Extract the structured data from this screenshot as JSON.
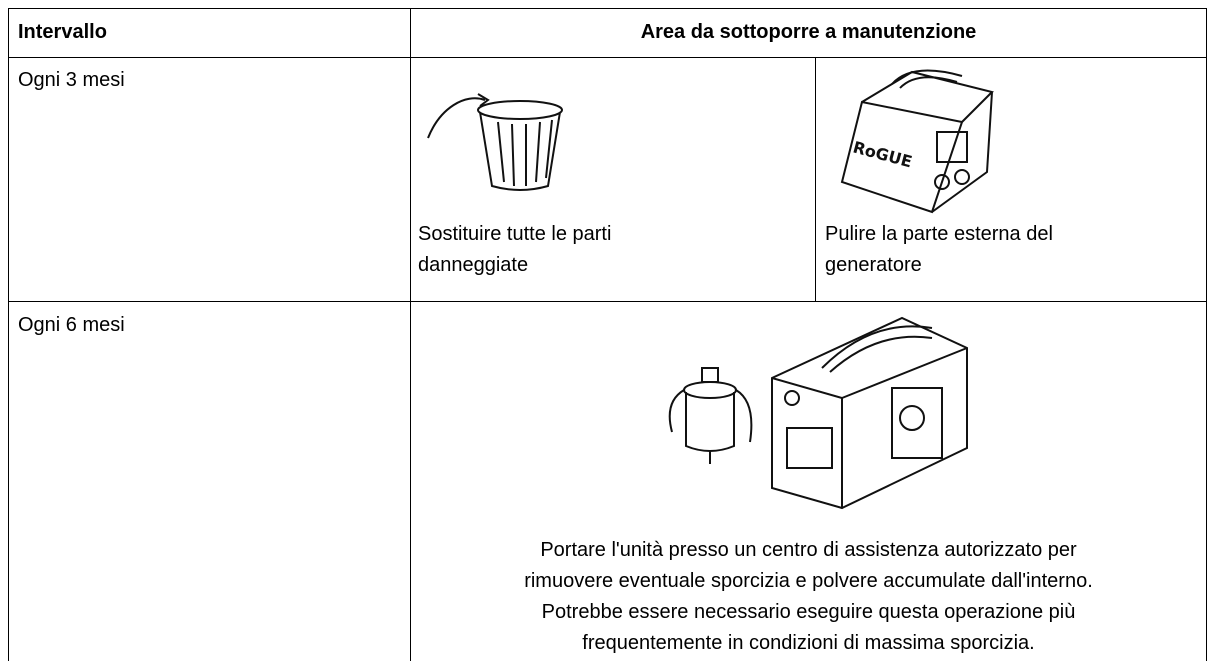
{
  "table": {
    "header": [
      "Intervallo",
      "Area da sottoporre a manutenzione"
    ],
    "rows": [
      {
        "interval": "Ogni 3 mesi",
        "tasks": [
          {
            "lines": [
              "Sostituire tutte le parti",
              "danneggiate"
            ]
          },
          {
            "lines": [
              "Pulire la parte esterna del",
              "generatore"
            ],
            "logo": "RoGUE"
          }
        ]
      },
      {
        "interval": "Ogni 6 mesi",
        "tasks": [
          {
            "lines": [
              "Portare l'unità presso un centro di assistenza autorizzato per",
              "rimuovere eventuale sporcizia e polvere accumulate dall'interno.",
              "Potrebbe essere necessario eseguire questa operazione più",
              "frequentemente in condizioni di massima sporcizia."
            ]
          }
        ]
      }
    ]
  }
}
